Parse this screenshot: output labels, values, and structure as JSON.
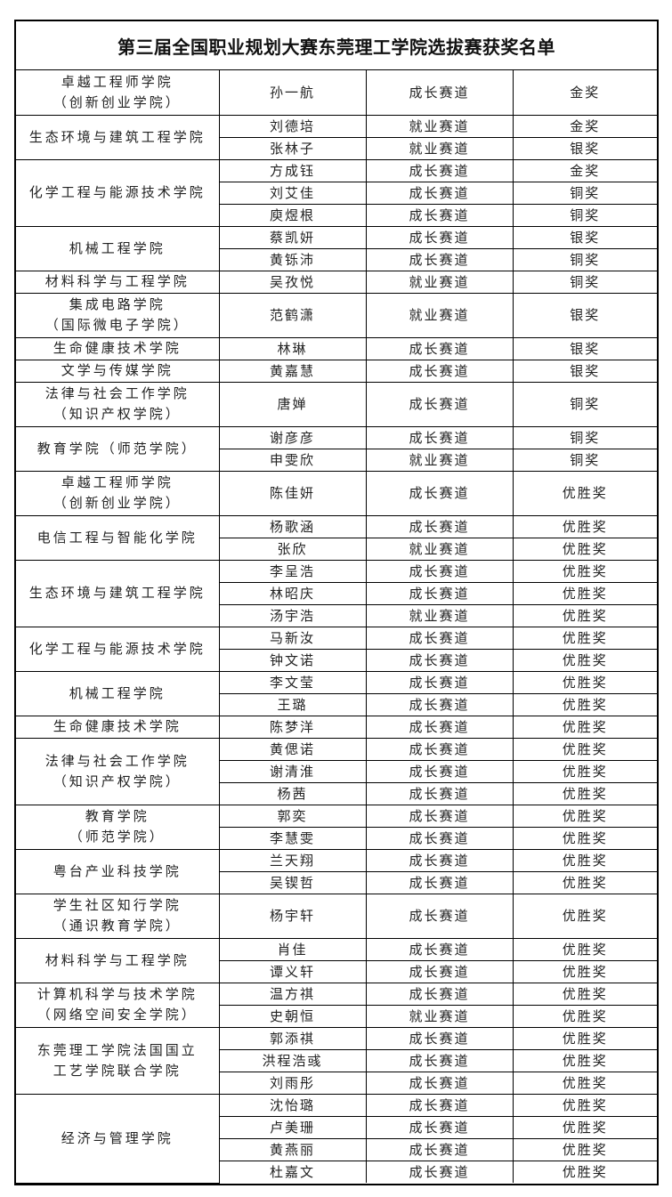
{
  "title": "第三届全国职业规划大赛东莞理工学院选拔赛获奖名单",
  "groups": [
    {
      "college": [
        "卓越工程师学院",
        "（创新创业学院）"
      ],
      "students": [
        [
          "孙一航",
          "成长赛道",
          "金奖"
        ]
      ]
    },
    {
      "college": [
        "生态环境与建筑工程学院"
      ],
      "students": [
        [
          "刘德培",
          "就业赛道",
          "金奖"
        ],
        [
          "张林子",
          "就业赛道",
          "银奖"
        ]
      ]
    },
    {
      "college": [
        "化学工程与能源技术学院"
      ],
      "students": [
        [
          "方成钰",
          "成长赛道",
          "金奖"
        ],
        [
          "刘艾佳",
          "成长赛道",
          "铜奖"
        ],
        [
          "庾煜根",
          "成长赛道",
          "铜奖"
        ]
      ]
    },
    {
      "college": [
        "机械工程学院"
      ],
      "students": [
        [
          "蔡凯妍",
          "成长赛道",
          "银奖"
        ],
        [
          "黄铄沛",
          "成长赛道",
          "铜奖"
        ]
      ]
    },
    {
      "college": [
        "材料科学与工程学院"
      ],
      "students": [
        [
          "吴孜悦",
          "就业赛道",
          "铜奖"
        ]
      ]
    },
    {
      "college": [
        "集成电路学院",
        "（国际微电子学院）"
      ],
      "students": [
        [
          "范鹤潇",
          "就业赛道",
          "银奖"
        ]
      ]
    },
    {
      "college": [
        "生命健康技术学院"
      ],
      "students": [
        [
          "林琳",
          "成长赛道",
          "银奖"
        ]
      ]
    },
    {
      "college": [
        "文学与传媒学院"
      ],
      "students": [
        [
          "黄嘉慧",
          "成长赛道",
          "银奖"
        ]
      ]
    },
    {
      "college": [
        "法律与社会工作学院",
        "（知识产权学院）"
      ],
      "students": [
        [
          "唐婵",
          "成长赛道",
          "铜奖"
        ]
      ]
    },
    {
      "college": [
        "教育学院（师范学院）"
      ],
      "students": [
        [
          "谢彦彦",
          "成长赛道",
          "铜奖"
        ],
        [
          "申雯欣",
          "就业赛道",
          "铜奖"
        ]
      ]
    },
    {
      "college": [
        "卓越工程师学院",
        "（创新创业学院）"
      ],
      "students": [
        [
          "陈佳妍",
          "成长赛道",
          "优胜奖"
        ]
      ]
    },
    {
      "college": [
        "电信工程与智能化学院"
      ],
      "students": [
        [
          "杨歌涵",
          "成长赛道",
          "优胜奖"
        ],
        [
          "张欣",
          "就业赛道",
          "优胜奖"
        ]
      ]
    },
    {
      "college": [
        "生态环境与建筑工程学院"
      ],
      "students": [
        [
          "李呈浩",
          "成长赛道",
          "优胜奖"
        ],
        [
          "林昭庆",
          "成长赛道",
          "优胜奖"
        ],
        [
          "汤宇浩",
          "就业赛道",
          "优胜奖"
        ]
      ]
    },
    {
      "college": [
        "化学工程与能源技术学院"
      ],
      "students": [
        [
          "马新汝",
          "成长赛道",
          "优胜奖"
        ],
        [
          "钟文诺",
          "成长赛道",
          "优胜奖"
        ]
      ]
    },
    {
      "college": [
        "机械工程学院"
      ],
      "students": [
        [
          "李文莹",
          "成长赛道",
          "优胜奖"
        ],
        [
          "王璐",
          "成长赛道",
          "优胜奖"
        ]
      ]
    },
    {
      "college": [
        "生命健康技术学院"
      ],
      "students": [
        [
          "陈梦洋",
          "成长赛道",
          "优胜奖"
        ]
      ]
    },
    {
      "college": [
        "法律与社会工作学院",
        "（知识产权学院）"
      ],
      "students": [
        [
          "黄偲诺",
          "成长赛道",
          "优胜奖"
        ],
        [
          "谢清淮",
          "成长赛道",
          "优胜奖"
        ],
        [
          "杨茜",
          "成长赛道",
          "优胜奖"
        ]
      ]
    },
    {
      "college": [
        "教育学院",
        "（师范学院）"
      ],
      "students": [
        [
          "郭奕",
          "成长赛道",
          "优胜奖"
        ],
        [
          "李慧雯",
          "成长赛道",
          "优胜奖"
        ]
      ]
    },
    {
      "college": [
        "粤台产业科技学院"
      ],
      "students": [
        [
          "兰天翔",
          "成长赛道",
          "优胜奖"
        ],
        [
          "吴锲哲",
          "成长赛道",
          "优胜奖"
        ]
      ]
    },
    {
      "college": [
        "学生社区知行学院",
        "（通识教育学院）"
      ],
      "students": [
        [
          "杨宇轩",
          "成长赛道",
          "优胜奖"
        ]
      ]
    },
    {
      "college": [
        "材料科学与工程学院"
      ],
      "students": [
        [
          "肖佳",
          "成长赛道",
          "优胜奖"
        ],
        [
          "谭义轩",
          "成长赛道",
          "优胜奖"
        ]
      ]
    },
    {
      "college": [
        "计算机科学与技术学院",
        "（网络空间安全学院）"
      ],
      "students": [
        [
          "温方祺",
          "成长赛道",
          "优胜奖"
        ],
        [
          "史朝恒",
          "就业赛道",
          "优胜奖"
        ]
      ]
    },
    {
      "college": [
        "东莞理工学院法国国立",
        "工艺学院联合学院"
      ],
      "students": [
        [
          "郭添祺",
          "成长赛道",
          "优胜奖"
        ],
        [
          "洪程浩彧",
          "成长赛道",
          "优胜奖"
        ],
        [
          "刘雨彤",
          "成长赛道",
          "优胜奖"
        ]
      ]
    },
    {
      "college": [
        "经济与管理学院"
      ],
      "students": [
        [
          "沈怡璐",
          "成长赛道",
          "优胜奖"
        ],
        [
          "卢美珊",
          "成长赛道",
          "优胜奖"
        ],
        [
          "黄燕丽",
          "成长赛道",
          "优胜奖"
        ],
        [
          "杜嘉文",
          "成长赛道",
          "优胜奖"
        ]
      ]
    }
  ]
}
